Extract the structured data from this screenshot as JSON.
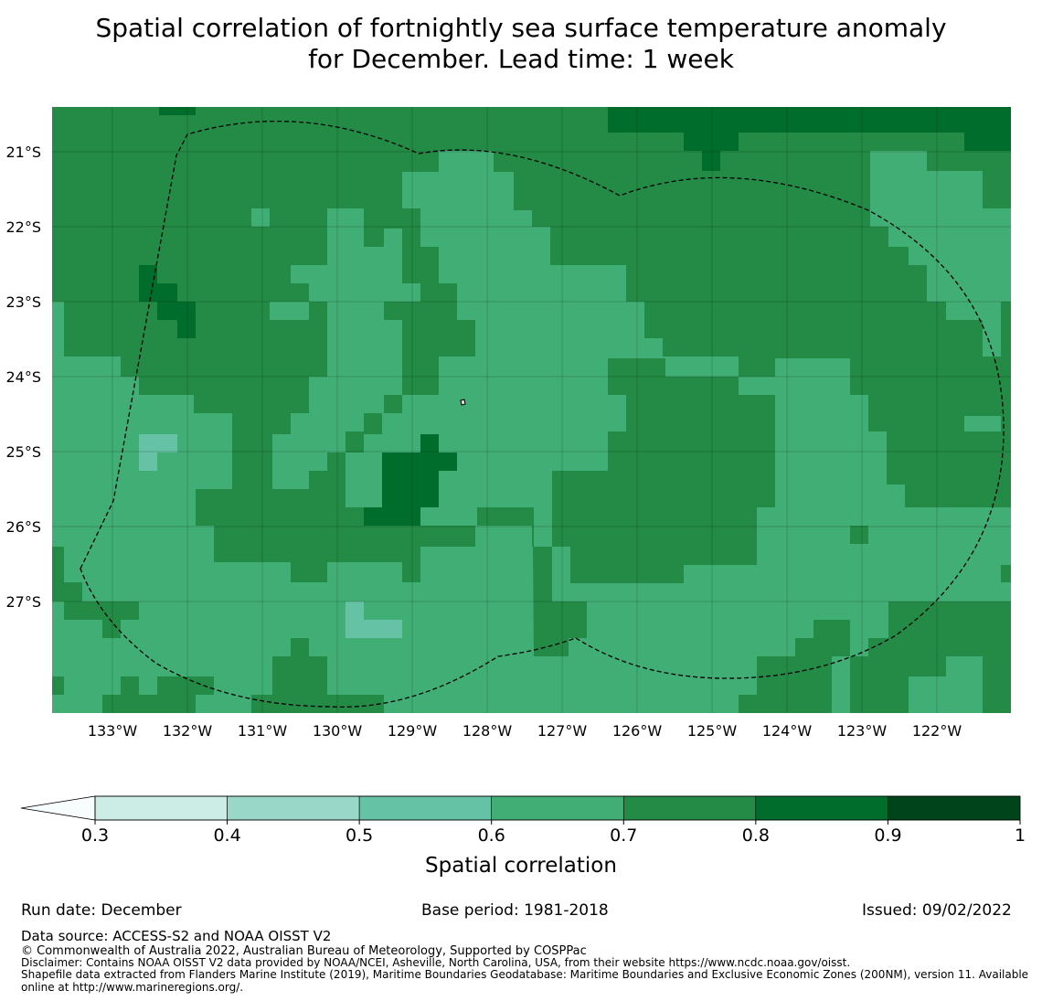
{
  "title_line1": "Spatial correlation of fortnightly sea surface temperature anomaly",
  "title_line2": "for December. Lead time: 1 week",
  "map": {
    "lat_ticks": [
      "21°S",
      "22°S",
      "23°S",
      "24°S",
      "25°S",
      "26°S",
      "27°S"
    ],
    "lon_ticks": [
      "133°W",
      "132°W",
      "131°W",
      "130°W",
      "129°W",
      "128°W",
      "127°W",
      "126°W",
      "125°W",
      "124°W",
      "123°W",
      "122°W"
    ],
    "boundary_style": "dashed",
    "colors": {
      "0.3-0.4": "#ccece6",
      "0.4-0.5": "#99d8c9",
      "0.5-0.6": "#66c2a4",
      "0.6-0.7": "#41ae76",
      "0.7-0.8": "#238b45",
      "0.8-0.9": "#006d2c",
      "0.9-1": "#00441b"
    }
  },
  "colorbar": {
    "label": "Spatial correlation",
    "ticks": [
      "0.3",
      "0.4",
      "0.5",
      "0.6",
      "0.7",
      "0.8",
      "0.9",
      "1"
    ],
    "under_color": "#f7fcfd",
    "colors": [
      "#ccece6",
      "#99d8c9",
      "#66c2a4",
      "#41ae76",
      "#238b45",
      "#006d2c",
      "#00441b"
    ]
  },
  "footer": {
    "run_date": "Run date: December",
    "base_period": "Base period: 1981-2018",
    "issued": "Issued: 09/02/2022",
    "data_source": "Data source: ACCESS-S2 and NOAA OISST V2",
    "copyright": "© Commonwealth of Australia 2022, Australian Bureau of Meteorology, Supported by COSPPac",
    "disclaimer": "Disclaimer: Contains NOAA OISST V2 data provided by NOAA/NCEI, Asheville, North Carolina, USA, from their website https://www.ncdc.noaa.gov/oisst.",
    "shapefile_1": "Shapefile data extracted from Flanders Marine Institute (2019), Maritime Boundaries Geodatabase: Maritime Boundaries and Exclusive Economic Zones (200NM), version 11. Available",
    "shapefile_2": "online at http://www.marineregions.org/."
  }
}
